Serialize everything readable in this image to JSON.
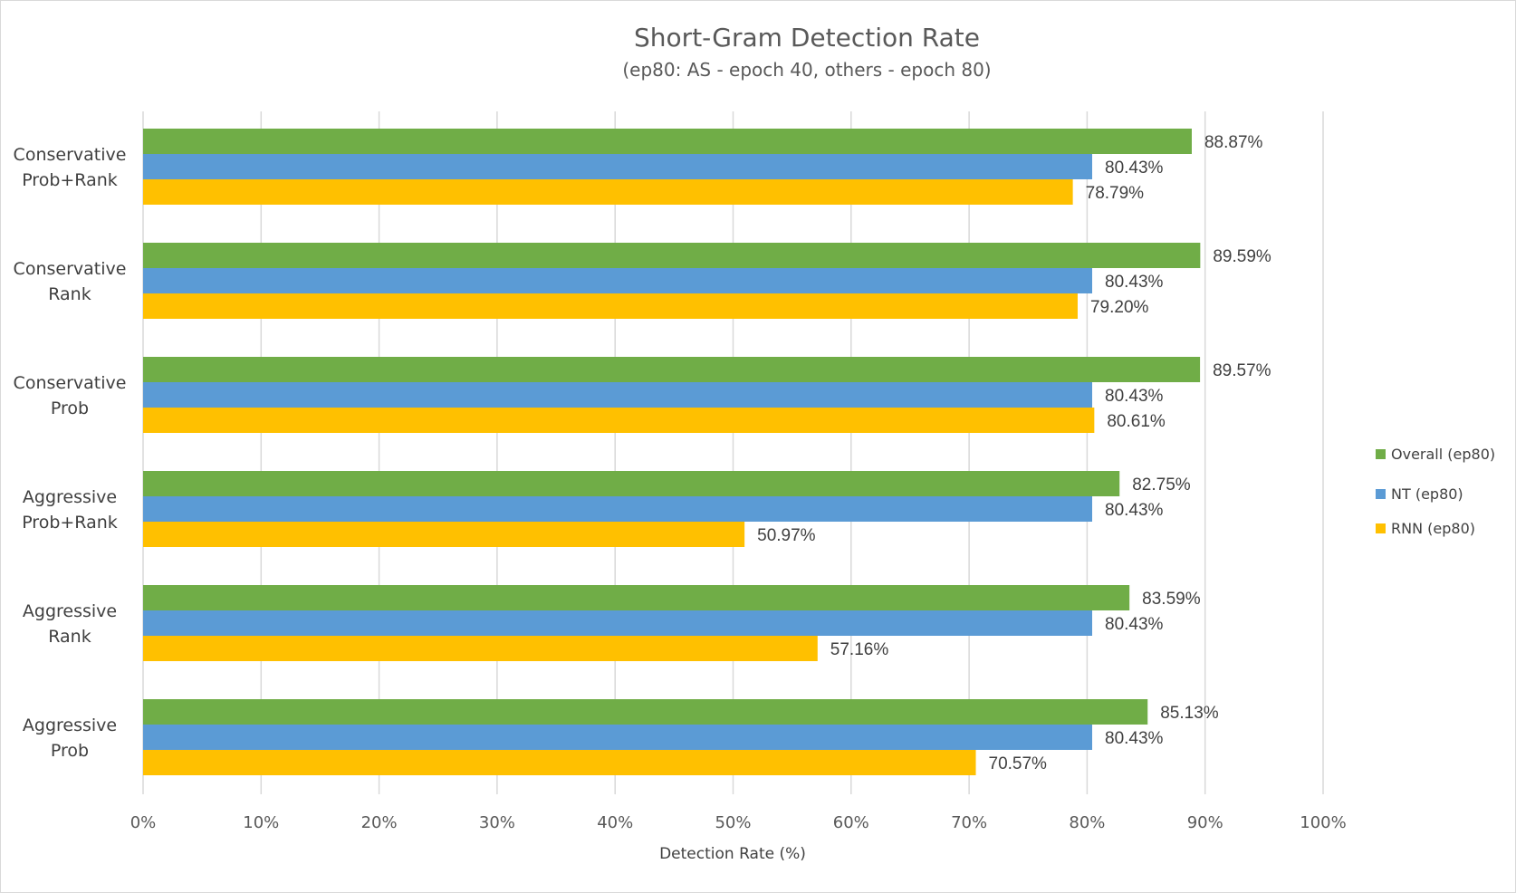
{
  "chart_data": {
    "type": "bar",
    "orientation": "horizontal",
    "title": "Short-Gram Detection Rate",
    "subtitle": "(ep80: AS - epoch 40, others - epoch 80)",
    "xlabel": "Detection Rate (%)",
    "ylabel": "",
    "xlim": [
      0,
      100
    ],
    "x_ticks": [
      "0%",
      "10%",
      "20%",
      "30%",
      "40%",
      "50%",
      "60%",
      "70%",
      "80%",
      "90%",
      "100%"
    ],
    "grid": true,
    "legend_position": "right",
    "categories": [
      [
        "Conservative",
        "Prob+Rank"
      ],
      [
        "Conservative",
        "Rank"
      ],
      [
        "Conservative",
        "Prob"
      ],
      [
        "Aggressive",
        "Prob+Rank"
      ],
      [
        "Aggressive",
        "Rank"
      ],
      [
        "Aggressive",
        "Prob"
      ]
    ],
    "series": [
      {
        "name": "Overall (ep80)",
        "color": "#70ad47",
        "values": [
          88.87,
          89.59,
          89.57,
          82.75,
          83.59,
          85.13
        ],
        "labels": [
          "88.87%",
          "89.59%",
          "89.57%",
          "82.75%",
          "83.59%",
          "85.13%"
        ]
      },
      {
        "name": "NT (ep80)",
        "color": "#5b9bd5",
        "values": [
          80.43,
          80.43,
          80.43,
          80.43,
          80.43,
          80.43
        ],
        "labels": [
          "80.43%",
          "80.43%",
          "80.43%",
          "80.43%",
          "80.43%",
          "80.43%"
        ]
      },
      {
        "name": "RNN (ep80)",
        "color": "#ffc000",
        "values": [
          78.79,
          79.2,
          80.61,
          50.97,
          57.16,
          70.57
        ],
        "labels": [
          "78.79%",
          "79.20%",
          "80.61%",
          "50.97%",
          "57.16%",
          "70.57%"
        ]
      }
    ]
  }
}
